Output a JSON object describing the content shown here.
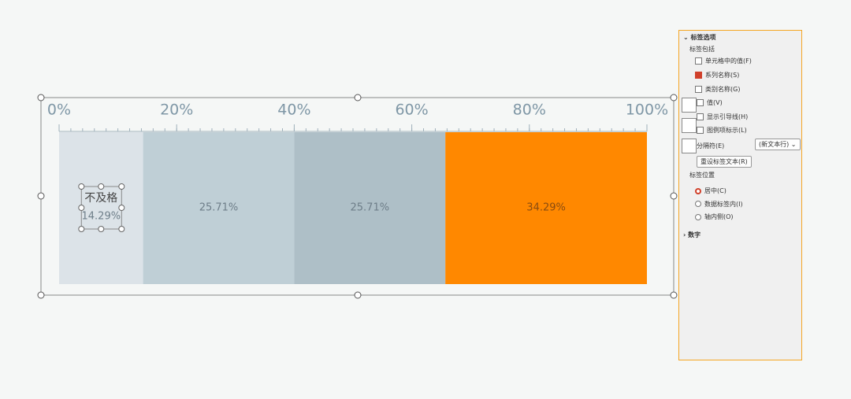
{
  "chart_data": {
    "type": "stacked_bar_horizontal",
    "series": [
      {
        "name": "不及格",
        "color": "#dce3e8",
        "values": [
          14.29
        ],
        "value_labels": [
          "14.29%"
        ]
      },
      {
        "color": "#bfcfd6",
        "values": [
          25.71
        ],
        "value_labels": [
          "25.71%"
        ]
      },
      {
        "color": "#aebfc7",
        "values": [
          25.71
        ],
        "value_labels": [
          "25.71%"
        ]
      },
      {
        "color": "#ff8800",
        "values": [
          34.29
        ],
        "value_labels": [
          "34.29%"
        ]
      }
    ],
    "xlim": [
      0,
      100
    ],
    "xticks": [
      {
        "value": 0,
        "label": "0%"
      },
      {
        "value": 20,
        "label": "20%"
      },
      {
        "value": 40,
        "label": "40%"
      },
      {
        "value": 60,
        "label": "60%"
      },
      {
        "value": 80,
        "label": "80%"
      },
      {
        "value": 100,
        "label": "100%"
      }
    ]
  },
  "panel": {
    "header": "标签选项",
    "group_label": "标签包括",
    "checkboxes": [
      "单元格中的值(F)",
      "系列名称(S)",
      "类别名称(G)",
      "值(V)",
      "显示引导线(H)",
      "图例项标示(L)"
    ],
    "checked": [
      false,
      true,
      false,
      false,
      false,
      false
    ],
    "separator_label": "分隔符(E)",
    "separator_value": "(新文本行)",
    "reset_button": "重设标签文本(R)",
    "position_label": "标签位置",
    "radios": [
      "居中(C)",
      "数据标签内(I)",
      "轴内侧(O)"
    ],
    "selected_radio": 0,
    "number_section": "数字"
  }
}
